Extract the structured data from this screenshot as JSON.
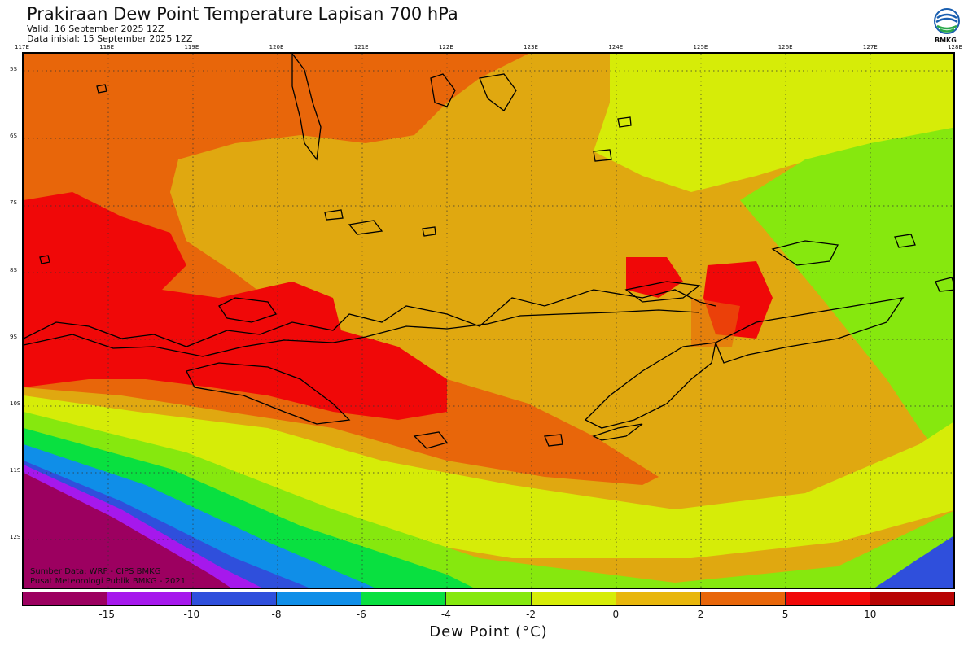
{
  "header": {
    "title": "Prakiraan Dew Point Temperature Lapisan 700 hPa",
    "valid": "Valid: 16 September 2025 12Z",
    "init": "Data inisial: 15 September 2025 12Z",
    "logo_text": "BMKG"
  },
  "axes": {
    "lon_ticks": [
      "117E",
      "118E",
      "119E",
      "120E",
      "121E",
      "122E",
      "123E",
      "124E",
      "125E",
      "126E",
      "127E",
      "128E"
    ],
    "lat_ticks": [
      "5S",
      "6S",
      "7S",
      "8S",
      "9S",
      "10S",
      "11S",
      "12S"
    ]
  },
  "credits": {
    "source": "Sumber Data: WRF - CIPS BMKG",
    "org": "Pusat Meteorologi Publik BMKG - 2021"
  },
  "legend": {
    "colors": [
      "#9c0060",
      "#a618ec",
      "#2f4fdc",
      "#0f8ee8",
      "#09e040",
      "#86e80e",
      "#d6ec08",
      "#e8b60c",
      "#e8660a",
      "#f00808",
      "#b80404"
    ],
    "ticks": [
      "-15",
      "-10",
      "-8",
      "-6",
      "-4",
      "-2",
      "0",
      "2",
      "5",
      "10"
    ],
    "unit_label": "Dew Point (°C)"
  }
}
